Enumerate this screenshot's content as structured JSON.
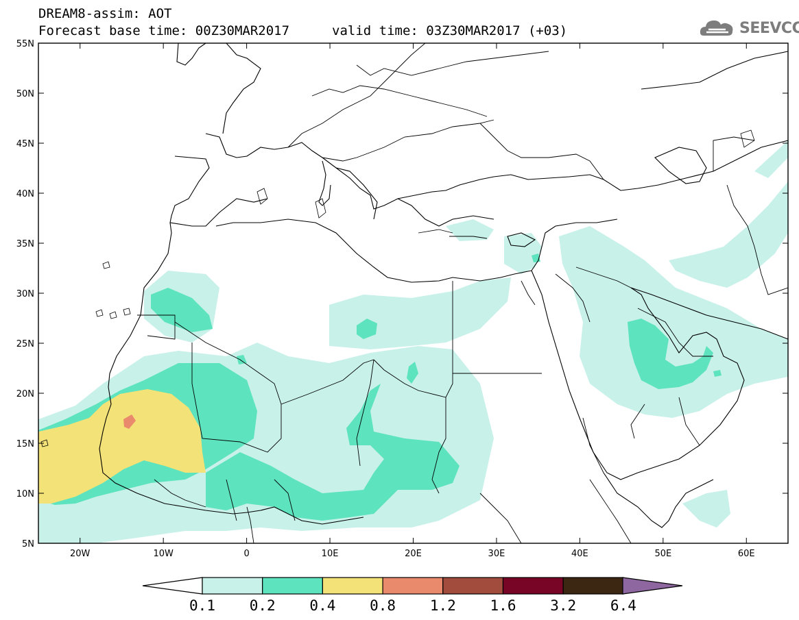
{
  "header": {
    "line1": "DREAM8-assim: AOT",
    "line2": "Forecast base time: 00Z30MAR2017",
    "line3": "valid time: 03Z30MAR2017 (+03)"
  },
  "logo": {
    "text": "SEEVCCC",
    "icon": "cloud-logo-icon"
  },
  "map": {
    "lat_labels": [
      "55N",
      "50N",
      "45N",
      "40N",
      "35N",
      "30N",
      "25N",
      "20N",
      "15N",
      "10N",
      "5N"
    ],
    "lon_labels": [
      "20W",
      "10W",
      "0",
      "10E",
      "20E",
      "30E",
      "40E",
      "50E",
      "60E"
    ],
    "lon_range": [
      -25,
      65
    ],
    "lat_range": [
      5,
      55
    ],
    "colors": {
      "land_lines": "#000000",
      "aot_0_1": "#c8f1e9",
      "aot_0_2": "#5de3be",
      "aot_0_4": "#f3e277",
      "aot_0_8": "#ea8a6c"
    }
  },
  "colorbar": {
    "labels": [
      "0.1",
      "0.2",
      "0.4",
      "0.8",
      "1.2",
      "1.6",
      "3.2",
      "6.4"
    ],
    "colors": [
      "#c8f1e9",
      "#5de3be",
      "#f3e277",
      "#ea8a6c",
      "#a24c3e",
      "#780526",
      "#3c2713",
      "#8e67a0"
    ]
  }
}
